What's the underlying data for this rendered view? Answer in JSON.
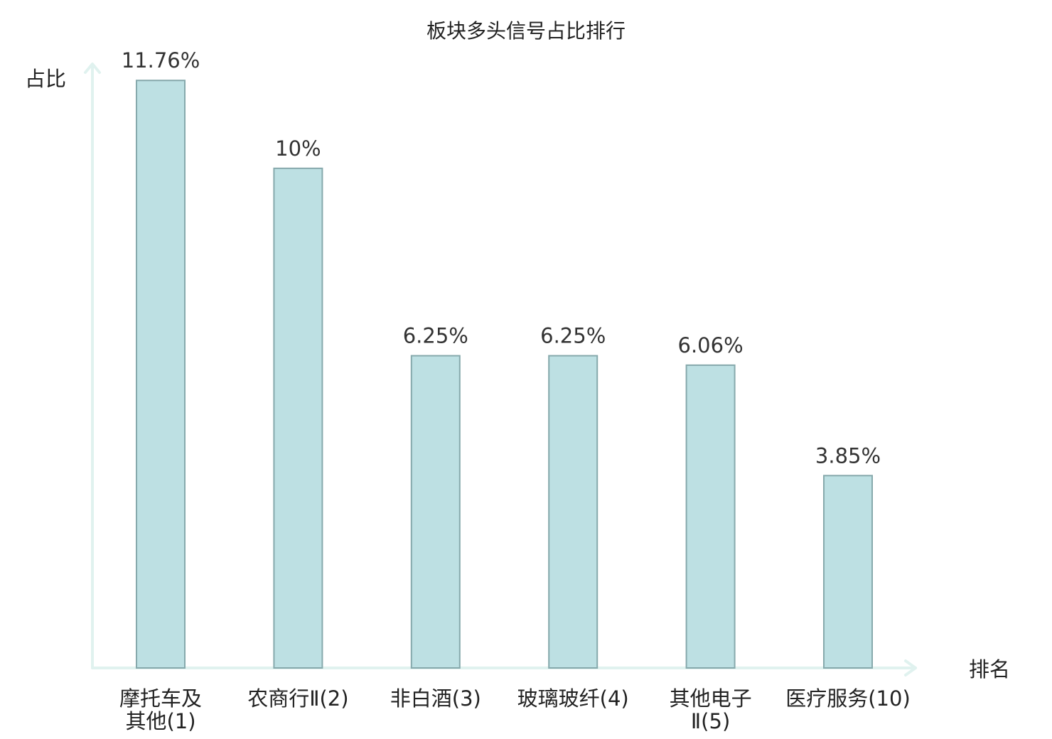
{
  "chart_data": {
    "type": "bar",
    "title": "板块多头信号占比排行",
    "ylabel": "占比",
    "xlabel": "排名",
    "unit": "%",
    "ylim": [
      0,
      13
    ],
    "grid": false,
    "categories": [
      {
        "lines": [
          "摩托车及",
          "其他(1)"
        ],
        "highlight": false
      },
      {
        "lines": [
          "农商行Ⅱ(2)"
        ],
        "highlight": false
      },
      {
        "lines": [
          "非白酒(3)"
        ],
        "highlight": false
      },
      {
        "lines": [
          "玻璃玻纤(4)"
        ],
        "highlight": false
      },
      {
        "lines": [
          "其他电子",
          "Ⅱ(5)"
        ],
        "highlight": false
      },
      {
        "lines": [
          "医疗服务(10)"
        ],
        "highlight": true
      }
    ],
    "values": [
      11.76,
      10,
      6.25,
      6.25,
      6.06,
      3.85
    ],
    "value_labels": [
      "11.76%",
      "10%",
      "6.25%",
      "6.25%",
      "6.06%",
      "3.85%"
    ],
    "colors": {
      "bar_fill": "#bde0e3",
      "bar_stroke": "#86a9ac",
      "axis": "#e0f2ef",
      "highlight_text": "#e0191f",
      "text": "#222222"
    }
  }
}
